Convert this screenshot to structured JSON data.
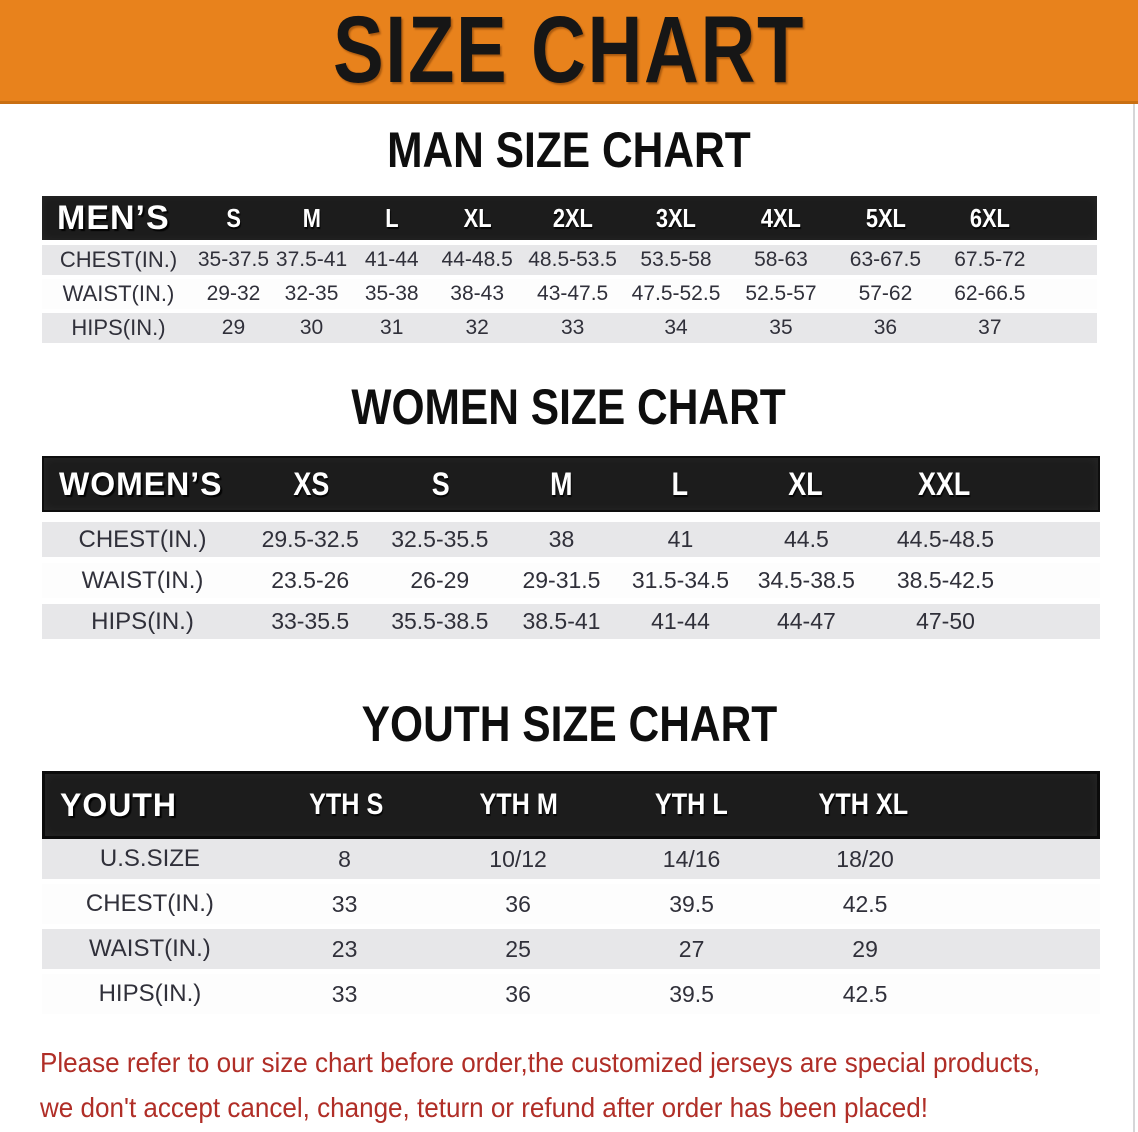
{
  "banner": {
    "title": "SIZE CHART"
  },
  "man_section": {
    "heading": "MAN SIZE CHART"
  },
  "women_section": {
    "heading": "WOMEN SIZE CHART"
  },
  "youth_section": {
    "heading": "YOUTH SIZE CHART"
  },
  "tables": {
    "men": {
      "label": "MEN’S",
      "sizes": [
        "S",
        "M",
        "L",
        "XL",
        "2XL",
        "3XL",
        "4XL",
        "5XL",
        "6XL"
      ],
      "rows": [
        {
          "label": "CHEST(IN.)",
          "values": [
            "35-37.5",
            "37.5-41",
            "41-44",
            "44-48.5",
            "48.5-53.5",
            "53.5-58",
            "58-63",
            "63-67.5",
            "67.5-72"
          ]
        },
        {
          "label": "WAIST(IN.)",
          "values": [
            "29-32",
            "32-35",
            "35-38",
            "38-43",
            "43-47.5",
            "47.5-52.5",
            "52.5-57",
            "57-62",
            "62-66.5"
          ]
        },
        {
          "label": "HIPS(IN.)",
          "values": [
            "29",
            "30",
            "31",
            "32",
            "33",
            "34",
            "35",
            "36",
            "37"
          ]
        }
      ]
    },
    "women": {
      "label": "WOMEN’S",
      "sizes": [
        "XS",
        "S",
        "M",
        "L",
        "XL",
        "XXL"
      ],
      "rows": [
        {
          "label": "CHEST(IN.)",
          "values": [
            "29.5-32.5",
            "32.5-35.5",
            "38",
            "41",
            "44.5",
            "44.5-48.5"
          ]
        },
        {
          "label": "WAIST(IN.)",
          "values": [
            "23.5-26",
            "26-29",
            "29-31.5",
            "31.5-34.5",
            "34.5-38.5",
            "38.5-42.5"
          ]
        },
        {
          "label": "HIPS(IN.)",
          "values": [
            "33-35.5",
            "35.5-38.5",
            "38.5-41",
            "41-44",
            "44-47",
            "47-50"
          ]
        }
      ]
    },
    "youth": {
      "label": "YOUTH",
      "sizes": [
        "YTH S",
        "YTH M",
        "YTH L",
        "YTH XL"
      ],
      "rows": [
        {
          "label": "U.S.SIZE",
          "values": [
            "8",
            "10/12",
            "14/16",
            "18/20"
          ]
        },
        {
          "label": "CHEST(IN.)",
          "values": [
            "33",
            "36",
            "39.5",
            "42.5"
          ]
        },
        {
          "label": "WAIST(IN.)",
          "values": [
            "23",
            "25",
            "27",
            "29"
          ]
        },
        {
          "label": "HIPS(IN.)",
          "values": [
            "33",
            "36",
            "39.5",
            "42.5"
          ]
        }
      ]
    }
  },
  "disclaimer": {
    "line1": "Please refer to our size chart before order,the customized jerseys are special products,",
    "line2": "we don't accept cancel, change, teturn or refund after order has been placed!"
  },
  "colors": {
    "banner_orange": "#E8821C",
    "header_black": "#1C1C1C",
    "row_gray": "#E7E7E9",
    "row_white": "#FDFDFD",
    "text_dark": "#30303A",
    "disclaimer_red": "#B02E27"
  }
}
